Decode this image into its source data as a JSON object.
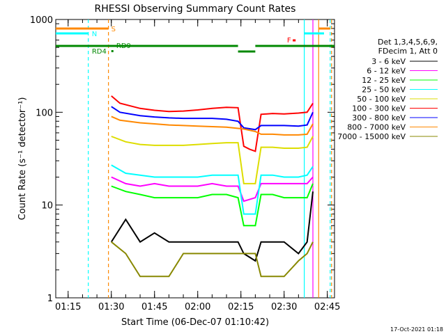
{
  "chart_data": {
    "type": "line",
    "title": "RHESSI Observing Summary Count Rates",
    "xlabel": "Start Time (06-Dec-07 01:10:42)",
    "ylabel": "Count Rate (s⁻¹ detector⁻¹)",
    "y_scale": "log",
    "ylim": [
      1,
      1000
    ],
    "xlim": [
      "01:10:42",
      "02:47:30"
    ],
    "x_ticks": [
      "01:15",
      "01:30",
      "01:45",
      "02:00",
      "02:15",
      "02:30",
      "02:45"
    ],
    "y_ticks": [
      "1",
      "10",
      "100",
      "1000"
    ],
    "legend_header": [
      "Det 1,3,4,5,6,9,",
      "FDecim 1, Att 0"
    ],
    "legend_position": "right",
    "series": [
      {
        "name": "3 - 6 keV",
        "color": "#000000",
        "x": [
          "01:30",
          "01:35",
          "01:40",
          "01:45",
          "01:50",
          "01:55",
          "02:00",
          "02:05",
          "02:10",
          "02:14",
          "02:16",
          "02:20",
          "02:22",
          "02:26",
          "02:30",
          "02:35",
          "02:38",
          "02:40"
        ],
        "y": [
          4,
          7,
          4,
          5,
          4,
          4,
          4,
          4,
          4,
          4,
          3,
          2.5,
          4,
          4,
          4,
          3,
          4,
          14
        ]
      },
      {
        "name": "6 - 12 keV",
        "color": "#ff00ff",
        "x": [
          "01:30",
          "01:35",
          "01:40",
          "01:45",
          "01:50",
          "01:55",
          "02:00",
          "02:05",
          "02:10",
          "02:14",
          "02:16",
          "02:20",
          "02:22",
          "02:26",
          "02:30",
          "02:35",
          "02:38",
          "02:40"
        ],
        "y": [
          20,
          17,
          16,
          17,
          16,
          16,
          16,
          17,
          16,
          16,
          11,
          12,
          17,
          17,
          17,
          17,
          17,
          20
        ]
      },
      {
        "name": "12 - 25 keV",
        "color": "#00ff00",
        "x": [
          "01:30",
          "01:35",
          "01:40",
          "01:45",
          "01:50",
          "01:55",
          "02:00",
          "02:05",
          "02:10",
          "02:14",
          "02:16",
          "02:20",
          "02:22",
          "02:26",
          "02:30",
          "02:35",
          "02:38",
          "02:40"
        ],
        "y": [
          16,
          14,
          13,
          12,
          12,
          12,
          12,
          13,
          13,
          12,
          6,
          6,
          13,
          13,
          12,
          12,
          12,
          17
        ]
      },
      {
        "name": "25 - 50 keV",
        "color": "#00ffff",
        "x": [
          "01:30",
          "01:35",
          "01:40",
          "01:45",
          "01:50",
          "01:55",
          "02:00",
          "02:05",
          "02:10",
          "02:14",
          "02:16",
          "02:20",
          "02:22",
          "02:26",
          "02:30",
          "02:35",
          "02:38",
          "02:40"
        ],
        "y": [
          27,
          22,
          21,
          20,
          20,
          20,
          20,
          21,
          21,
          21,
          8,
          8,
          21,
          21,
          20,
          20,
          21,
          26
        ]
      },
      {
        "name": "50 - 100 keV",
        "color": "#dddd00",
        "x": [
          "01:30",
          "01:35",
          "01:40",
          "01:45",
          "01:50",
          "01:55",
          "02:00",
          "02:05",
          "02:10",
          "02:14",
          "02:16",
          "02:20",
          "02:22",
          "02:26",
          "02:30",
          "02:35",
          "02:38",
          "02:40"
        ],
        "y": [
          55,
          48,
          45,
          44,
          44,
          44,
          45,
          46,
          47,
          47,
          17,
          17,
          42,
          42,
          41,
          41,
          42,
          55
        ]
      },
      {
        "name": "100 - 300 keV",
        "color": "#ff0000",
        "x": [
          "01:30",
          "01:33",
          "01:40",
          "01:45",
          "01:50",
          "01:55",
          "02:00",
          "02:05",
          "02:10",
          "02:14",
          "02:16",
          "02:18",
          "02:20",
          "02:22",
          "02:26",
          "02:30",
          "02:35",
          "02:38",
          "02:40"
        ],
        "y": [
          150,
          125,
          110,
          105,
          102,
          103,
          106,
          110,
          113,
          112,
          43,
          40,
          38,
          95,
          97,
          96,
          98,
          100,
          125
        ]
      },
      {
        "name": "300 - 800 keV",
        "color": "#0000ff",
        "x": [
          "01:30",
          "01:33",
          "01:40",
          "01:45",
          "01:50",
          "01:55",
          "02:00",
          "02:05",
          "02:10",
          "02:14",
          "02:16",
          "02:20",
          "02:22",
          "02:26",
          "02:30",
          "02:35",
          "02:38",
          "02:40"
        ],
        "y": [
          115,
          100,
          92,
          89,
          87,
          86,
          86,
          86,
          84,
          80,
          68,
          65,
          72,
          72,
          72,
          71,
          73,
          100
        ]
      },
      {
        "name": "800 - 7000 keV",
        "color": "#ff8800",
        "x": [
          "01:30",
          "01:33",
          "01:40",
          "01:45",
          "01:50",
          "01:55",
          "02:00",
          "02:05",
          "02:10",
          "02:14",
          "02:16",
          "02:20",
          "02:22",
          "02:26",
          "02:30",
          "02:35",
          "02:38",
          "02:40"
        ],
        "y": [
          90,
          82,
          77,
          75,
          73,
          72,
          71,
          70,
          69,
          67,
          66,
          62,
          58,
          58,
          57,
          57,
          58,
          75
        ]
      },
      {
        "name": "7000 - 15000 keV",
        "color": "#888800",
        "x": [
          "01:30",
          "01:35",
          "01:40",
          "01:45",
          "01:50",
          "01:55",
          "02:00",
          "02:05",
          "02:10",
          "02:14",
          "02:16",
          "02:20",
          "02:22",
          "02:26",
          "02:30",
          "02:35",
          "02:38",
          "02:40"
        ],
        "y": [
          4,
          3,
          1.7,
          1.7,
          1.7,
          3,
          3,
          3,
          3,
          3,
          3,
          3,
          1.7,
          1.7,
          1.7,
          2.5,
          3,
          4
        ]
      }
    ],
    "vertical_lines": [
      {
        "x": "01:22",
        "color": "#00ffff",
        "style": "dashed"
      },
      {
        "x": "01:29",
        "color": "#ff8800",
        "style": "dashed"
      },
      {
        "x": "02:37",
        "color": "#00ffff",
        "style": "solid"
      },
      {
        "x": "02:40",
        "color": "#ff00ff",
        "style": "solid"
      },
      {
        "x": "02:42",
        "color": "#ff8800",
        "style": "solid"
      },
      {
        "x": "02:46",
        "color": "#00ffff",
        "style": "dashed"
      },
      {
        "x": "02:46",
        "color": "#ff8800",
        "style": "dashed"
      }
    ],
    "annotations": [
      {
        "label": "S",
        "color": "#ff8800"
      },
      {
        "label": "N",
        "color": "#00ffff"
      },
      {
        "label": "RD9",
        "color": "#008800"
      },
      {
        "label": "RD4",
        "color": "#008800"
      },
      {
        "label": "F",
        "color": "#ff0000"
      }
    ]
  },
  "footer_date": "17-Oct-2021 01:18"
}
